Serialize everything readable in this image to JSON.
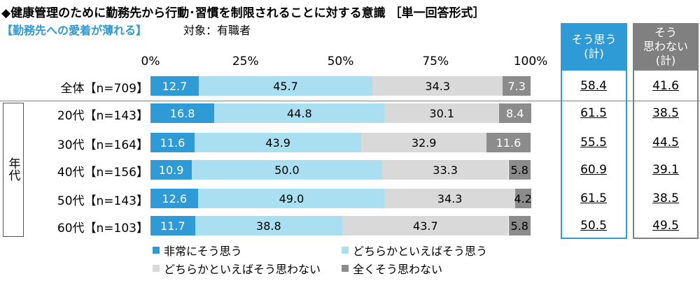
{
  "title": "◆健康管理のために勤務先から行動･習慣を制限されることに対する意識 ［単一回答形式］",
  "subtitle": "【勤務先への愛着が薄れる】",
  "target": "対象：有職者",
  "group_label": "年代",
  "summary_headers": {
    "agree": [
      "そう思う",
      "(計)"
    ],
    "disagree": [
      "そう",
      "思わない",
      "(計)"
    ]
  },
  "colors": {
    "very_agree": "#2e9bd6",
    "agree": "#a9dff0",
    "disagree": "#d9d9d9",
    "very_disagree": "#8c8c8c",
    "agree_header": "#2e9bd6",
    "disagree_header": "#808080"
  },
  "chart_data": {
    "type": "bar",
    "orientation": "horizontal",
    "stacked": "percent",
    "x_ticks": [
      "0%",
      "25%",
      "50%",
      "75%",
      "100%"
    ],
    "xlim": [
      0,
      100
    ],
    "categories": [
      "全体【n=709】",
      "20代【n=143】",
      "30代【n=164】",
      "40代【n=156】",
      "50代【n=143】",
      "60代【n=103】"
    ],
    "series": [
      {
        "name": "非常にそう思う",
        "values": [
          12.7,
          16.8,
          11.6,
          10.9,
          12.6,
          11.7
        ]
      },
      {
        "name": "どちらかといえばそう思う",
        "values": [
          45.7,
          44.8,
          43.9,
          50.0,
          49.0,
          38.8
        ]
      },
      {
        "name": "どちらかといえばそう思わない",
        "values": [
          34.3,
          30.1,
          32.9,
          33.3,
          34.3,
          43.7
        ]
      },
      {
        "name": "全くそう思わない",
        "values": [
          7.3,
          8.4,
          11.6,
          5.8,
          4.2,
          5.8
        ]
      }
    ],
    "labels": [
      [
        "12.7",
        "45.7",
        "34.3",
        "7.3"
      ],
      [
        "16.8",
        "44.8",
        "30.1",
        "8.4"
      ],
      [
        "11.6",
        "43.9",
        "32.9",
        "11.6"
      ],
      [
        "10.9",
        "50.0",
        "33.3",
        "5.8"
      ],
      [
        "12.6",
        "49.0",
        "34.3",
        "4.2"
      ],
      [
        "11.7",
        "38.8",
        "43.7",
        "5.8"
      ]
    ],
    "agree_total": [
      "58.4",
      "61.5",
      "55.5",
      "60.9",
      "61.5",
      "50.5"
    ],
    "disagree_total": [
      "41.6",
      "38.5",
      "44.5",
      "39.1",
      "38.5",
      "49.5"
    ],
    "legend": [
      "非常にそう思う",
      "どちらかといえばそう思う",
      "どちらかといえばそう思わない",
      "全くそう思わない"
    ],
    "legend_position": "bottom"
  }
}
